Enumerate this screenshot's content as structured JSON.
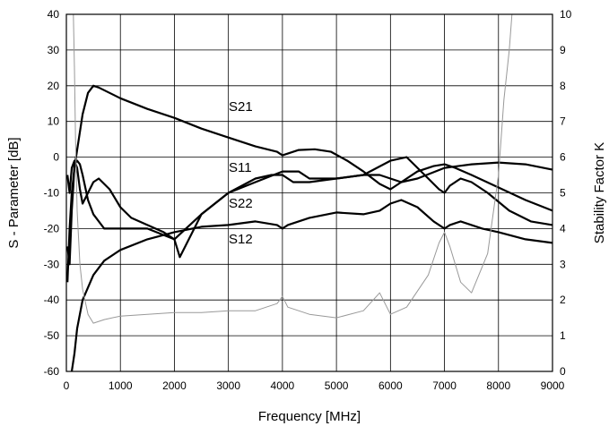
{
  "chart_data": {
    "type": "line",
    "xlabel": "Frequency [MHz]",
    "ylabel": "S - Parameter  [dB]",
    "y2label": "Stability Factor K",
    "xlim": [
      0,
      9000
    ],
    "ylim": [
      -60,
      40
    ],
    "y2lim": [
      0,
      10
    ],
    "xticks": [
      0,
      1000,
      2000,
      3000,
      4000,
      5000,
      6000,
      7000,
      8000,
      9000
    ],
    "yticks": [
      -60,
      -50,
      -40,
      -30,
      -20,
      -10,
      0,
      10,
      20,
      30,
      40
    ],
    "y2ticks": [
      0,
      1,
      2,
      3,
      4,
      5,
      6,
      7,
      8,
      9,
      10
    ],
    "grid": true,
    "colors": {
      "s_params": "#000000",
      "k_factor": "#999999"
    },
    "series": [
      {
        "name": "S21",
        "axis": "left",
        "x": [
          20,
          60,
          100,
          150,
          200,
          300,
          400,
          500,
          600,
          800,
          1000,
          1500,
          2000,
          2500,
          3000,
          3500,
          3900,
          4000,
          4100,
          4300,
          4600,
          4900,
          5200,
          5500,
          5800,
          6000,
          6200,
          6500,
          6800,
          7000,
          7200,
          7500,
          8000,
          8500,
          9000
        ],
        "y": [
          -35,
          -20,
          -10,
          -3,
          2,
          12,
          18,
          20,
          19.5,
          18,
          16.5,
          13.5,
          11,
          8,
          5.5,
          3,
          1.5,
          0.5,
          1,
          2,
          2.2,
          1.5,
          -1,
          -4,
          -7.5,
          -9,
          -7,
          -4,
          -2.5,
          -2,
          -3,
          -5,
          -8.5,
          -12,
          -15
        ]
      },
      {
        "name": "S11",
        "axis": "left",
        "x": [
          20,
          60,
          100,
          150,
          200,
          250,
          300,
          400,
          500,
          600,
          800,
          1000,
          1200,
          1500,
          1800,
          2000,
          2100,
          2200,
          2500,
          3000,
          3500,
          3800,
          4000,
          4200,
          4500,
          5000,
          5500,
          5800,
          6000,
          6200,
          6500,
          7000,
          7500,
          8000,
          8500,
          9000
        ],
        "y": [
          -5,
          -10,
          -3,
          -1,
          -3,
          -9,
          -13,
          -10,
          -7,
          -6,
          -9,
          -14,
          -17,
          -19,
          -21,
          -23,
          -28,
          -25,
          -16,
          -10,
          -6,
          -5,
          -5,
          -7,
          -7,
          -6,
          -5,
          -5,
          -6,
          -7,
          -6,
          -3,
          -2,
          -1.5,
          -2,
          -3.5
        ]
      },
      {
        "name": "S22",
        "axis": "left",
        "x": [
          20,
          60,
          100,
          130,
          150,
          200,
          250,
          300,
          400,
          500,
          700,
          1000,
          1500,
          2000,
          2500,
          3000,
          3500,
          4000,
          4300,
          4500,
          5000,
          5500,
          6000,
          6300,
          6700,
          6900,
          7000,
          7100,
          7300,
          7500,
          7800,
          8200,
          8600,
          9000
        ],
        "y": [
          -25,
          -30,
          -15,
          -8,
          -2,
          -1,
          -2,
          -5,
          -12,
          -16,
          -20,
          -20,
          -20,
          -23,
          -16,
          -10,
          -7,
          -4,
          -4,
          -6,
          -6,
          -5,
          -1,
          0,
          -6,
          -9,
          -10,
          -8,
          -6,
          -7,
          -10,
          -15,
          -18,
          -19
        ]
      },
      {
        "name": "S12",
        "axis": "left",
        "x": [
          100,
          150,
          200,
          300,
          500,
          700,
          1000,
          1500,
          2000,
          2500,
          3000,
          3500,
          3900,
          4000,
          4100,
          4500,
          5000,
          5500,
          5800,
          6000,
          6200,
          6500,
          6800,
          7000,
          7100,
          7300,
          7700,
          8000,
          8500,
          9000
        ],
        "y": [
          -60,
          -55,
          -48,
          -40,
          -33,
          -29,
          -26,
          -23,
          -21,
          -19.5,
          -19,
          -18,
          -19,
          -20,
          -19,
          -17,
          -15.5,
          -16,
          -15,
          -13,
          -12,
          -14,
          -18,
          -20,
          -19,
          -18,
          -20,
          -21,
          -23,
          -24
        ]
      },
      {
        "name": "K",
        "axis": "right",
        "x": [
          130,
          150,
          170,
          200,
          250,
          300,
          400,
          500,
          700,
          1000,
          1500,
          2000,
          2500,
          3000,
          3500,
          3900,
          4000,
          4100,
          4500,
          5000,
          5500,
          5800,
          6000,
          6300,
          6700,
          6900,
          7000,
          7100,
          7300,
          7500,
          7800,
          8000,
          8100,
          8200,
          8250
        ],
        "y": [
          10,
          8.5,
          6.5,
          4.5,
          3,
          2.3,
          1.6,
          1.35,
          1.45,
          1.55,
          1.6,
          1.65,
          1.65,
          1.7,
          1.7,
          1.9,
          2.1,
          1.8,
          1.6,
          1.5,
          1.7,
          2.2,
          1.6,
          1.8,
          2.7,
          3.6,
          3.9,
          3.5,
          2.5,
          2.2,
          3.3,
          5.5,
          7.6,
          9.0,
          10
        ]
      }
    ]
  }
}
